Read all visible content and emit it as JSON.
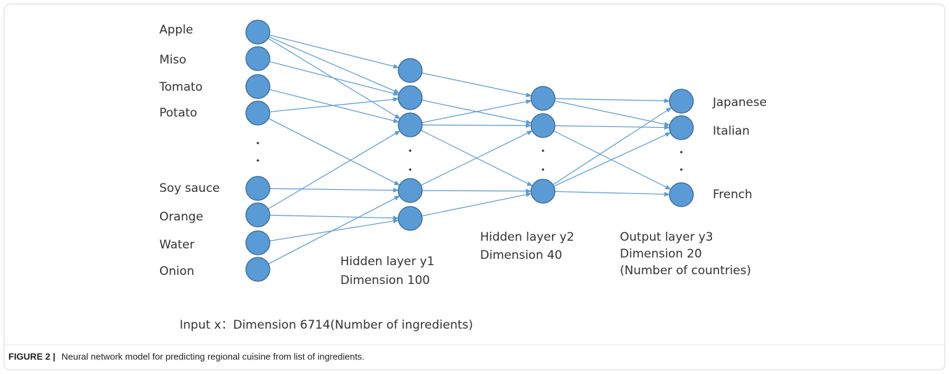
{
  "input_layer": {
    "labels": [
      "Apple",
      "Miso",
      "Tomato",
      "Potato",
      "Soy sauce",
      "Orange",
      "Water",
      "Onion"
    ],
    "caption": "Input x：Dimension 6714(Number of ingredients)"
  },
  "hidden_layer_1": {
    "title": "Hidden layer y1",
    "dimension": "Dimension 100"
  },
  "hidden_layer_2": {
    "title": "Hidden layer y2",
    "dimension": "Dimension 40"
  },
  "output_layer": {
    "labels": [
      "Japanese",
      "Italian",
      "French"
    ],
    "title": "Output layer y3",
    "dimension": "Dimension 20",
    "note": "(Number of countries)"
  },
  "caption": {
    "label": "FIGURE 2 |",
    "text": "Neural network model for predicting regional cuisine from list of ingredients."
  }
}
